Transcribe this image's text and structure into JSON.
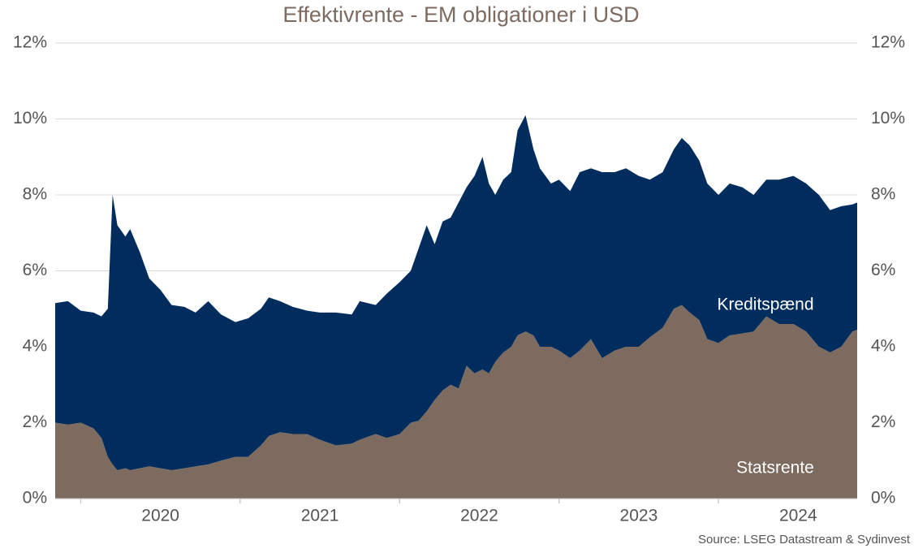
{
  "chart_data": {
    "type": "stacked_area",
    "title": "Effektivrente - EM obligationer i USD",
    "source": "Source: LSEG Datastream & Sydinvest",
    "annotations": [
      "Kreditspænd",
      "Statsrente"
    ],
    "x": [
      2019.84,
      2019.92,
      2020.0,
      2020.08,
      2020.13,
      2020.17,
      2020.2,
      2020.23,
      2020.28,
      2020.31,
      2020.37,
      2020.43,
      2020.5,
      2020.57,
      2020.65,
      2020.72,
      2020.8,
      2020.88,
      2020.97,
      2021.05,
      2021.13,
      2021.18,
      2021.25,
      2021.33,
      2021.42,
      2021.5,
      2021.6,
      2021.7,
      2021.75,
      2021.85,
      2021.92,
      2022.0,
      2022.07,
      2022.12,
      2022.17,
      2022.22,
      2022.27,
      2022.32,
      2022.37,
      2022.42,
      2022.47,
      2022.52,
      2022.56,
      2022.6,
      2022.65,
      2022.7,
      2022.74,
      2022.79,
      2022.84,
      2022.88,
      2022.95,
      2023.0,
      2023.07,
      2023.13,
      2023.2,
      2023.27,
      2023.35,
      2023.42,
      2023.5,
      2023.57,
      2023.65,
      2023.72,
      2023.77,
      2023.82,
      2023.88,
      2023.93,
      2024.0,
      2024.07,
      2024.15,
      2024.22,
      2024.3,
      2024.38,
      2024.47,
      2024.55,
      2024.63,
      2024.7,
      2024.77,
      2024.84,
      2024.87
    ],
    "series": [
      {
        "name": "Statsrente",
        "color": "#7d6b60",
        "values": [
          2.0,
          1.95,
          2.0,
          1.85,
          1.6,
          1.1,
          0.9,
          0.75,
          0.8,
          0.75,
          0.8,
          0.85,
          0.8,
          0.75,
          0.8,
          0.85,
          0.9,
          1.0,
          1.1,
          1.1,
          1.4,
          1.65,
          1.75,
          1.7,
          1.7,
          1.55,
          1.4,
          1.45,
          1.55,
          1.7,
          1.6,
          1.7,
          2.0,
          2.05,
          2.3,
          2.6,
          2.85,
          3.0,
          2.9,
          3.5,
          3.3,
          3.4,
          3.3,
          3.6,
          3.85,
          4.0,
          4.3,
          4.4,
          4.3,
          4.0,
          4.0,
          3.9,
          3.7,
          3.9,
          4.2,
          3.7,
          3.9,
          4.0,
          4.0,
          4.25,
          4.5,
          5.0,
          5.1,
          4.9,
          4.7,
          4.2,
          4.1,
          4.3,
          4.35,
          4.4,
          4.8,
          4.6,
          4.6,
          4.4,
          4.0,
          3.85,
          4.0,
          4.4,
          4.45
        ]
      },
      {
        "name": "Kreditspænd",
        "color": "#002d5e",
        "values": [
          3.15,
          3.25,
          2.95,
          3.05,
          3.2,
          3.9,
          7.1,
          6.45,
          6.1,
          6.35,
          5.7,
          4.95,
          4.7,
          4.35,
          4.25,
          4.05,
          4.3,
          3.85,
          3.55,
          3.65,
          3.6,
          3.65,
          3.45,
          3.35,
          3.25,
          3.35,
          3.5,
          3.4,
          3.65,
          3.4,
          3.8,
          4.0,
          4.0,
          4.55,
          4.9,
          4.1,
          4.45,
          4.4,
          4.9,
          4.7,
          5.2,
          5.6,
          5.0,
          4.4,
          4.55,
          4.6,
          5.4,
          5.7,
          4.9,
          4.7,
          4.3,
          4.5,
          4.4,
          4.7,
          4.5,
          4.9,
          4.7,
          4.7,
          4.5,
          4.15,
          4.1,
          4.2,
          4.4,
          4.4,
          4.2,
          4.1,
          3.9,
          4.0,
          3.85,
          3.6,
          3.6,
          3.8,
          3.9,
          3.9,
          4.0,
          3.75,
          3.7,
          3.35,
          3.35
        ]
      }
    ],
    "xlim": [
      2019.84,
      2024.87
    ],
    "xticks": [
      {
        "value": 2020.5,
        "label": "2020"
      },
      {
        "value": 2021.5,
        "label": "2021"
      },
      {
        "value": 2022.5,
        "label": "2022"
      },
      {
        "value": 2023.5,
        "label": "2023"
      },
      {
        "value": 2024.5,
        "label": "2024"
      }
    ],
    "ylim": [
      0,
      12
    ],
    "yticks": [
      {
        "value": 0,
        "label": "0%"
      },
      {
        "value": 2,
        "label": "2%"
      },
      {
        "value": 4,
        "label": "4%"
      },
      {
        "value": 6,
        "label": "6%"
      },
      {
        "value": 8,
        "label": "8%"
      },
      {
        "value": 10,
        "label": "10%"
      },
      {
        "value": 12,
        "label": "12%"
      }
    ],
    "grid": true
  }
}
